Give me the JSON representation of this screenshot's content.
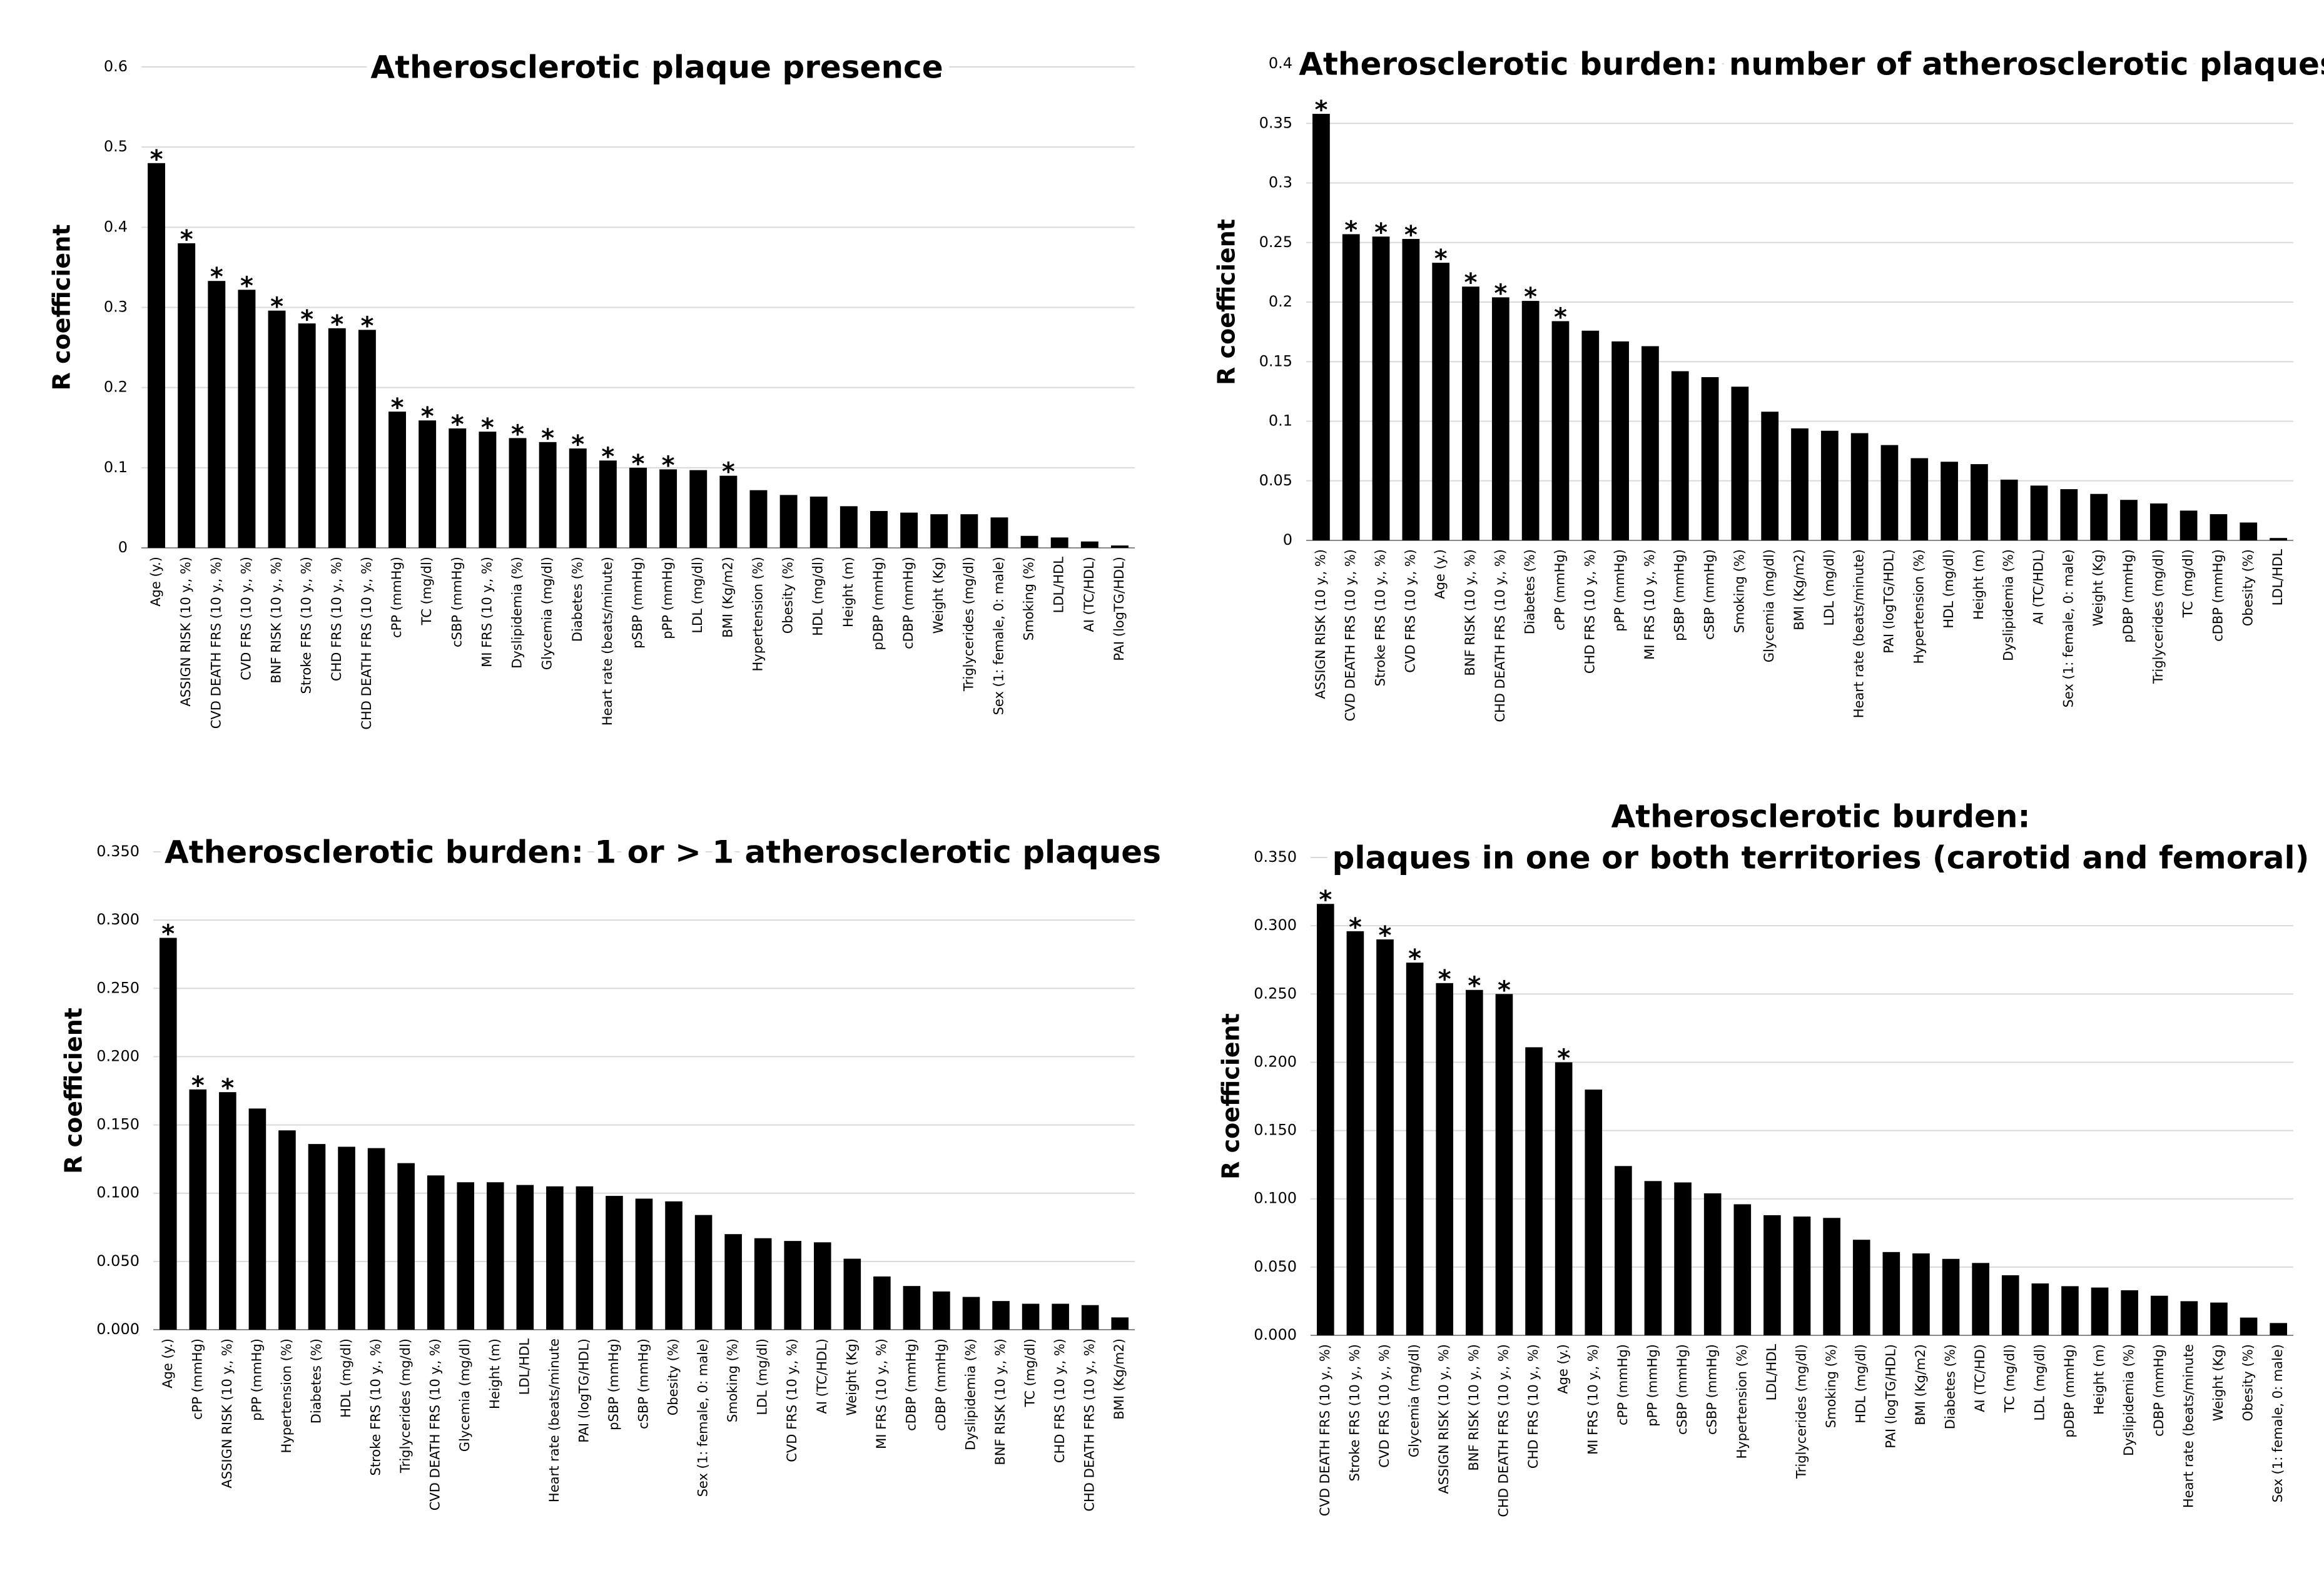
{
  "chart_data": [
    {
      "type": "bar",
      "title": "Atherosclerotic plaque presence",
      "ylabel": "R coefficient",
      "color": "#000000",
      "grid": true,
      "ylim": [
        0,
        0.6
      ],
      "yticks": [
        0,
        0.1,
        0.2,
        0.3,
        0.4,
        0.5,
        0.6
      ],
      "categories": [
        "Age (y.)",
        "ASSIGN RISK (10 y., %)",
        "CVD DEATH FRS (10 y., %)",
        "CVD FRS (10 y., %)",
        "BNF RISK (10 y., %)",
        "Stroke FRS (10 y., %)",
        "CHD FRS (10 y., %)",
        "CHD DEATH FRS (10 y., %)",
        "cPP (mmHg)",
        "TC (mg/dl)",
        "cSBP (mmHg)",
        "MI FRS (10 y., %)",
        "Dyslipidemia (%)",
        "Glycemia (mg/dl)",
        "Diabetes (%)",
        "Heart rate (beats/minute)",
        "pSBP (mmHg)",
        "pPP (mmHg)",
        "LDL (mg/dl)",
        "BMI (Kg/m2)",
        "Hypertension (%)",
        "Obesity (%)",
        "HDL (mg/dl)",
        "Height (m)",
        "pDBP (mmHg)",
        "cDBP (mmHg)",
        "Weight (Kg)",
        "Triglycerides (mg/dl)",
        "Sex (1: female, 0: male)",
        "Smoking (%)",
        "LDL/HDL",
        "AI (TC/HDL)",
        "PAI (logTG/HDL)"
      ],
      "values": [
        0.48,
        0.38,
        0.333,
        0.322,
        0.296,
        0.28,
        0.274,
        0.272,
        0.17,
        0.159,
        0.149,
        0.145,
        0.137,
        0.132,
        0.124,
        0.109,
        0.1,
        0.098,
        0.097,
        0.09,
        0.072,
        0.066,
        0.064,
        0.052,
        0.046,
        0.044,
        0.042,
        0.042,
        0.038,
        0.015,
        0.013,
        0.008,
        0.003
      ],
      "significance": [
        "*",
        "*",
        "*",
        "*",
        "*",
        "*",
        "*",
        "*",
        "*",
        "*",
        "*",
        "*",
        "*",
        "*",
        "*",
        "*",
        "*",
        "*",
        null,
        "*",
        null,
        null,
        null,
        null,
        null,
        null,
        null,
        null,
        null,
        null,
        null,
        null,
        null
      ]
    },
    {
      "type": "bar",
      "title": "Atherosclerotic burden: number of atherosclerotic plaques",
      "ylabel": "R coefficient",
      "color": "#000000",
      "grid": true,
      "ylim": [
        0,
        0.4
      ],
      "yticks": [
        0,
        0.05,
        0.1,
        0.15,
        0.2,
        0.25,
        0.3,
        0.35,
        0.4
      ],
      "categories": [
        "ASSIGN RISK (10 y., %)",
        "CVD DEATH FRS (10 y., %)",
        "Stroke FRS (10 y., %)",
        "CVD FRS (10 y., %)",
        "Age (y.)",
        "BNF RISK (10 y., %)",
        "CHD DEATH FRS (10 y., %)",
        "Diabetes (%)",
        "cPP (mmHg)",
        "CHD FRS (10 y., %)",
        "pPP (mmHg)",
        "MI FRS (10 y., %)",
        "pSBP (mmHg)",
        "cSBP (mmHg)",
        "Smoking (%)",
        "Glycemia (mg/dl)",
        "BMI (Kg/m2)",
        "LDL (mg/dl)",
        "Heart rate (beats/minute)",
        "PAI (logTG/HDL)",
        "Hypertension (%)",
        "HDL (mg/dl)",
        "Height (m)",
        "Dyslipidemia (%)",
        "AI (TC/HDL)",
        "Sex (1: female, 0: male)",
        "Weight (Kg)",
        "pDBP (mmHg)",
        "Triglycerides (mg/dl)",
        "TC (mg/dl)",
        "cDBP (mmHg)",
        "Obesity (%)",
        "LDL/HDL"
      ],
      "values": [
        0.358,
        0.257,
        0.255,
        0.253,
        0.233,
        0.213,
        0.204,
        0.201,
        0.184,
        0.176,
        0.167,
        0.163,
        0.142,
        0.137,
        0.129,
        0.108,
        0.094,
        0.092,
        0.09,
        0.08,
        0.069,
        0.066,
        0.064,
        0.051,
        0.046,
        0.043,
        0.039,
        0.034,
        0.031,
        0.025,
        0.022,
        0.015,
        0.002
      ],
      "significance": [
        "*",
        "*",
        "*",
        "*",
        "*",
        "*",
        "*",
        "*",
        "*",
        null,
        null,
        null,
        null,
        null,
        null,
        null,
        null,
        null,
        null,
        null,
        null,
        null,
        null,
        null,
        null,
        null,
        null,
        null,
        null,
        null,
        null,
        null,
        null
      ]
    },
    {
      "type": "bar",
      "title": "Atherosclerotic burden: 1 or > 1 atherosclerotic plaques",
      "ylabel": "R coefficient",
      "color": "#000000",
      "grid": true,
      "ylim": [
        0,
        0.35
      ],
      "yticks": [
        {
          "value": 0,
          "label": "0.000"
        },
        {
          "value": 0.05,
          "label": "0.050"
        },
        {
          "value": 0.1,
          "label": "0.100"
        },
        {
          "value": 0.15,
          "label": "0.150"
        },
        {
          "value": 0.2,
          "label": "0.200"
        },
        {
          "value": 0.25,
          "label": "0.250"
        },
        {
          "value": 0.3,
          "label": "0.300"
        },
        {
          "value": 0.35,
          "label": "0.350"
        }
      ],
      "categories": [
        "Age (y.)",
        "cPP (mmHg)",
        "ASSIGN RISK (10 y., %)",
        "pPP (mmHg)",
        "Hypertension (%)",
        "Diabetes (%)",
        "HDL (mg/dl)",
        "Stroke FRS (10 y., %)",
        "Triglycerides (mg/dl)",
        "CVD DEATH FRS (10 y., %)",
        "Glycemia (mg/dl)",
        "Height (m)",
        "LDL/HDL",
        "Heart rate (beats/minute",
        "PAI (logTG/HDL)",
        "pSBP (mmHg)",
        "cSBP (mmHg)",
        "Obesity (%)",
        "Sex (1: female, 0: male)",
        "Smoking (%)",
        "LDL (mg/dl)",
        "CVD FRS (10 y., %)",
        "AI (TC/HDL)",
        "Weight (Kg)",
        "MI FRS (10 y., %)",
        "cDBP (mmHg)",
        "cDBP (mmHg)",
        "Dyslipidemia (%)",
        "BNF RISK (10 y., %)",
        "TC (mg/dl)",
        "CHD FRS (10 y., %)",
        "CHD DEATH FRS (10 y., %)",
        "BMI (Kg/m2)"
      ],
      "values": [
        0.287,
        0.176,
        0.174,
        0.162,
        0.146,
        0.136,
        0.134,
        0.133,
        0.122,
        0.113,
        0.108,
        0.108,
        0.106,
        0.105,
        0.105,
        0.098,
        0.096,
        0.094,
        0.084,
        0.07,
        0.067,
        0.065,
        0.064,
        0.052,
        0.039,
        0.032,
        0.028,
        0.024,
        0.021,
        0.019,
        0.019,
        0.018,
        0.009
      ],
      "significance": [
        "*",
        "*",
        "*",
        null,
        null,
        null,
        null,
        null,
        null,
        null,
        null,
        null,
        null,
        null,
        null,
        null,
        null,
        null,
        null,
        null,
        null,
        null,
        null,
        null,
        null,
        null,
        null,
        null,
        null,
        null,
        null,
        null,
        null
      ]
    },
    {
      "type": "bar",
      "title": [
        "Atherosclerotic burden:",
        "plaques in one or both territories (carotid and femoral)"
      ],
      "ylabel": "R coefficient",
      "color": "#000000",
      "grid": true,
      "ylim": [
        0,
        0.35
      ],
      "yticks": [
        {
          "value": 0,
          "label": "0.000"
        },
        {
          "value": 0.05,
          "label": "0.050"
        },
        {
          "value": 0.1,
          "label": "0.100"
        },
        {
          "value": 0.15,
          "label": "0.150"
        },
        {
          "value": 0.2,
          "label": "0.200"
        },
        {
          "value": 0.25,
          "label": "0.250"
        },
        {
          "value": 0.3,
          "label": "0.300"
        },
        {
          "value": 0.35,
          "label": "0.350"
        }
      ],
      "categories": [
        "CVD DEATH FRS (10 y., %)",
        "Stroke FRS (10 y., %)",
        "CVD FRS (10 y., %)",
        "Glycemia (mg/dl)",
        "ASSIGN RISK (10 y., %)",
        "BNF RISK (10 y., %)",
        "CHD DEATH FRS (10 y., %)",
        "CHD FRS (10 y., %)",
        "Age (y.)",
        "MI FRS (10 y., %)",
        "cPP (mmHg)",
        "pPP (mmHg)",
        "cSBP (mmHg)",
        "cSBP (mmHg)",
        "Hypertension (%)",
        "LDL/HDL",
        "Triglycerides (mg/dl)",
        "Smoking (%)",
        "HDL (mg/dl)",
        "PAI (logTG/HDL)",
        "BMI (Kg/m2)",
        "Diabetes (%)",
        "AI (TC/HD)",
        "TC (mg/dl)",
        "LDL (mg/dl)",
        "pDBP (mmHg)",
        "Height (m)",
        "Dyslipidemia (%)",
        "cDBP (mmHg)",
        "Heart rate (beats/minute",
        "Weight (Kg)",
        "Obesity (%)",
        "Sex (1: female, 0: male)"
      ],
      "values": [
        0.316,
        0.296,
        0.29,
        0.273,
        0.258,
        0.253,
        0.25,
        0.211,
        0.2,
        0.18,
        0.124,
        0.113,
        0.112,
        0.104,
        0.096,
        0.088,
        0.087,
        0.086,
        0.07,
        0.061,
        0.06,
        0.056,
        0.053,
        0.044,
        0.038,
        0.036,
        0.035,
        0.033,
        0.029,
        0.025,
        0.024,
        0.013,
        0.009
      ],
      "significance": [
        "*",
        "*",
        "*",
        "*",
        "*",
        "*",
        "*",
        null,
        "*",
        null,
        null,
        null,
        null,
        null,
        null,
        null,
        null,
        null,
        null,
        null,
        null,
        null,
        null,
        null,
        null,
        null,
        null,
        null,
        null,
        null,
        null,
        null,
        null
      ]
    }
  ]
}
